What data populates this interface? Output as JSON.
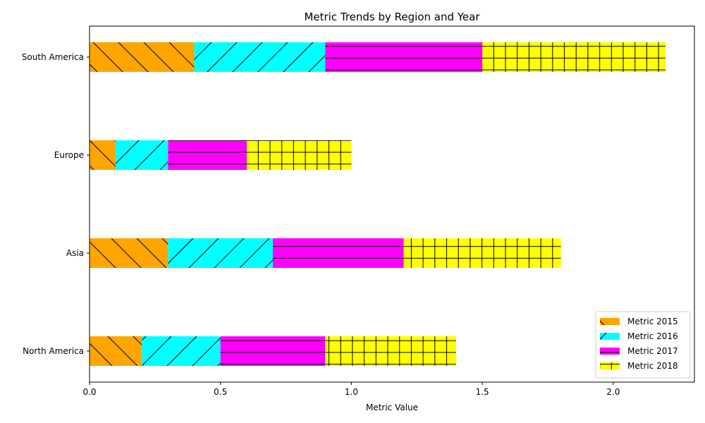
{
  "chart_data": {
    "type": "bar",
    "orientation": "horizontal",
    "stacked": true,
    "title": "Metric Trends by Region and Year",
    "xlabel": "Metric Value",
    "ylabel": "",
    "categories": [
      "North America",
      "Asia",
      "Europe",
      "South America"
    ],
    "xlim": [
      0,
      2.31
    ],
    "xticks": [
      {
        "value": 0.0,
        "label": "0.0"
      },
      {
        "value": 0.5,
        "label": "0.5"
      },
      {
        "value": 1.0,
        "label": "1.0"
      },
      {
        "value": 1.5,
        "label": "1.5"
      },
      {
        "value": 2.0,
        "label": "2.0"
      }
    ],
    "grid": false,
    "legend_position": "lower-right",
    "series": [
      {
        "name": "Metric 2015",
        "values": [
          0.2,
          0.3,
          0.1,
          0.4
        ],
        "color": "#FFA500",
        "hatch": "backslash"
      },
      {
        "name": "Metric 2016",
        "values": [
          0.3,
          0.4,
          0.2,
          0.5
        ],
        "color": "#00FFFF",
        "hatch": "slash"
      },
      {
        "name": "Metric 2017",
        "values": [
          0.4,
          0.5,
          0.3,
          0.6
        ],
        "color": "#FF00FF",
        "hatch": "horizontal"
      },
      {
        "name": "Metric 2018",
        "values": [
          0.5,
          0.6,
          0.4,
          0.7
        ],
        "color": "#FFFF00",
        "hatch": "plus"
      }
    ]
  }
}
